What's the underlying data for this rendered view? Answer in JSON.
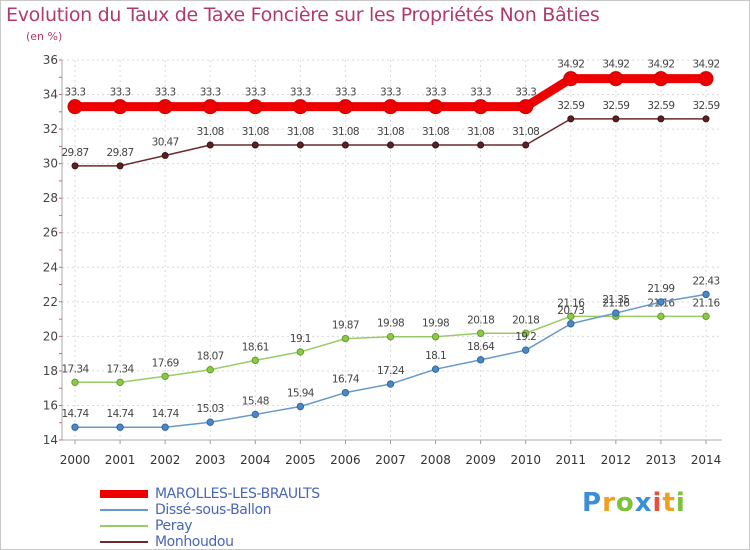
{
  "title": "Evolution du Taux de Taxe Foncière sur les Propriétés Non Bâties",
  "unit": "(en %)",
  "logo": {
    "p": "P",
    "r": "r",
    "o": "o",
    "x": "x",
    "i1": "i",
    "t": "t",
    "i2": "i"
  },
  "chart_data": {
    "type": "line",
    "title": "Evolution du Taux de Taxe Foncière sur les Propriétés Non Bâties",
    "ylabel": "(en %)",
    "xlabel": "",
    "ylim": [
      14,
      36
    ],
    "yticks": [
      14,
      16,
      18,
      20,
      22,
      24,
      26,
      28,
      30,
      32,
      34,
      36
    ],
    "grid": true,
    "legend": "bottom-left",
    "x": [
      "2000",
      "2001",
      "2002",
      "2003",
      "2004",
      "2005",
      "2006",
      "2007",
      "2008",
      "2009",
      "2010",
      "2011",
      "2012",
      "2013",
      "2014"
    ],
    "series": [
      {
        "name": "MAROLLES-LES-BRAULTS",
        "color": "#ee0000",
        "values": [
          33.3,
          33.3,
          33.3,
          33.3,
          33.3,
          33.3,
          33.3,
          33.3,
          33.3,
          33.3,
          33.3,
          34.92,
          34.92,
          34.92,
          34.92
        ],
        "labels": [
          "33.3",
          "33.3",
          "33.3",
          "33.3",
          "33.3",
          "33.3",
          "33.3",
          "33.3",
          "33.3",
          "33.3",
          "33.3",
          "34.92",
          "34.92",
          "34.92",
          "34.92"
        ]
      },
      {
        "name": "Dissé-sous-Ballon",
        "color": "#6699cc",
        "values": [
          14.74,
          14.74,
          14.74,
          15.03,
          15.48,
          15.94,
          16.74,
          17.24,
          18.1,
          18.64,
          19.2,
          20.73,
          21.35,
          21.99,
          22.43
        ],
        "labels": [
          "14.74",
          "14.74",
          "14.74",
          "15.03",
          "15.48",
          "15.94",
          "16.74",
          "17.24",
          "18.1",
          "18.64",
          "19.2",
          "20.73",
          "21.35",
          "21.99",
          "22.43"
        ]
      },
      {
        "name": "Peray",
        "color": "#99cc66",
        "values": [
          17.34,
          17.34,
          17.69,
          18.07,
          18.61,
          19.1,
          19.87,
          19.98,
          19.98,
          20.18,
          20.18,
          21.16,
          21.16,
          21.16,
          21.16
        ],
        "labels": [
          "17.34",
          "17.34",
          "17.69",
          "18.07",
          "18.61",
          "19.1",
          "19.87",
          "19.98",
          "19.98",
          "20.18",
          "20.18",
          "21.16",
          "21.16",
          "21.16",
          "21.16"
        ]
      },
      {
        "name": "Monhoudou",
        "color": "#6b2b2b",
        "values": [
          29.87,
          29.87,
          30.47,
          31.08,
          31.08,
          31.08,
          31.08,
          31.08,
          31.08,
          31.08,
          31.08,
          32.59,
          32.59,
          32.59,
          32.59
        ],
        "labels": [
          "29.87",
          "29.87",
          "30.47",
          "31.08",
          "31.08",
          "31.08",
          "31.08",
          "31.08",
          "31.08",
          "31.08",
          "31.08",
          "32.59",
          "32.59",
          "32.59",
          "32.59"
        ]
      }
    ]
  }
}
